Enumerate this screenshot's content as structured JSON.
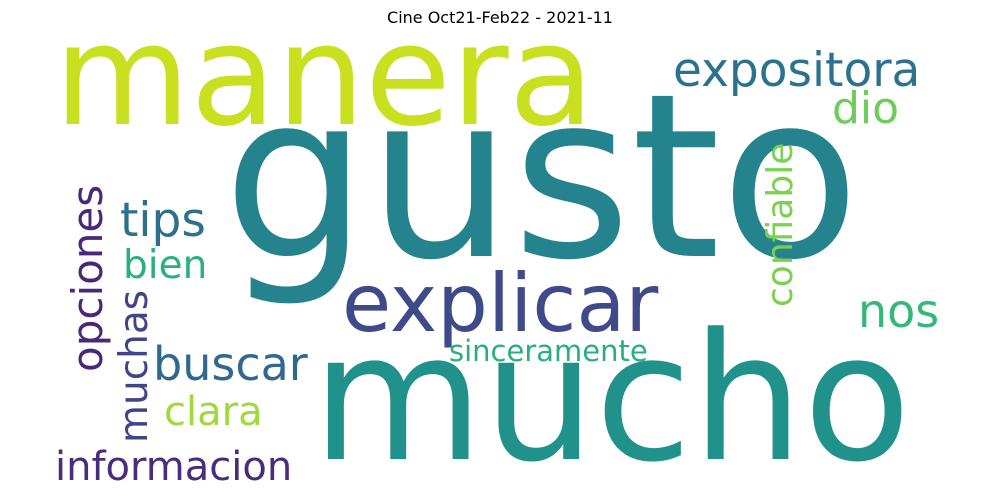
{
  "title": "Cine Oct21-Feb22 - 2021-11",
  "words": [
    {
      "text": "manera",
      "color": "#c8e020"
    },
    {
      "text": "gusto",
      "color": "#25838e"
    },
    {
      "text": "mucho",
      "color": "#21918c"
    },
    {
      "text": "explicar",
      "color": "#3e4a89"
    },
    {
      "text": "expositora",
      "color": "#2c728e"
    },
    {
      "text": "dio",
      "color": "#6ccd5a"
    },
    {
      "text": "confiable",
      "color": "#7ad151"
    },
    {
      "text": "tips",
      "color": "#2d708e"
    },
    {
      "text": "bien",
      "color": "#2ab07f"
    },
    {
      "text": "opciones",
      "color": "#482878"
    },
    {
      "text": "muchas",
      "color": "#414487"
    },
    {
      "text": "buscar",
      "color": "#31688e"
    },
    {
      "text": "nos",
      "color": "#35b779"
    },
    {
      "text": "sinceramente",
      "color": "#29af7f"
    },
    {
      "text": "clara",
      "color": "#a0da39"
    },
    {
      "text": "informacion",
      "color": "#472d7b"
    }
  ]
}
